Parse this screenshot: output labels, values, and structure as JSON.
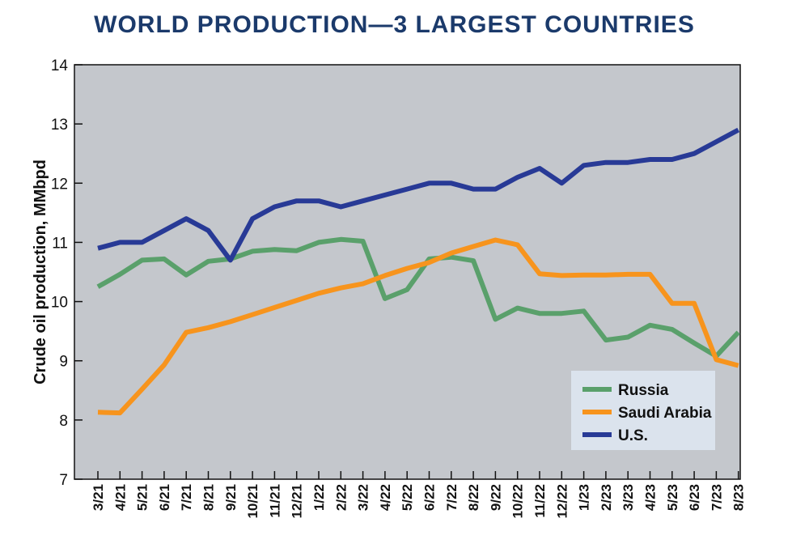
{
  "chart_data": {
    "type": "line",
    "title": "WORLD PRODUCTION—3 LARGEST COUNTRIES",
    "xlabel": "",
    "ylabel": "Crude oil production, MMbpd",
    "ylim": [
      7,
      14
    ],
    "yticks": [
      "7",
      "8",
      "9",
      "10",
      "11",
      "12",
      "13",
      "14"
    ],
    "categories": [
      "3/21",
      "4/21",
      "5/21",
      "6/21",
      "7/21",
      "8/21",
      "9/21",
      "10/21",
      "11/21",
      "12/21",
      "1/22",
      "2/22",
      "3/22",
      "4/22",
      "5/22",
      "6/22",
      "7/22",
      "8/22",
      "9/22",
      "10/22",
      "11/22",
      "12/22",
      "1/23",
      "2/23",
      "3/23",
      "4/23",
      "5/23",
      "6/23",
      "7/23",
      "8/23"
    ],
    "legend_position": "bottom-right",
    "series": [
      {
        "name": "Russia",
        "color": "#5aa06b",
        "values": [
          10.25,
          10.46,
          10.7,
          10.72,
          10.45,
          10.68,
          10.72,
          10.85,
          10.88,
          10.86,
          11.0,
          11.05,
          11.02,
          10.05,
          10.2,
          10.72,
          10.75,
          10.69,
          9.7,
          9.89,
          9.8,
          9.8,
          9.84,
          9.35,
          9.4,
          9.6,
          9.53,
          9.3,
          9.08,
          9.48
        ]
      },
      {
        "name": "Saudi Arabia",
        "color": "#f7941d",
        "values": [
          8.13,
          8.12,
          8.52,
          8.93,
          9.48,
          9.56,
          9.66,
          9.78,
          9.9,
          10.02,
          10.14,
          10.23,
          10.3,
          10.44,
          10.56,
          10.66,
          10.82,
          10.93,
          11.04,
          10.96,
          10.47,
          10.44,
          10.45,
          10.45,
          10.46,
          10.46,
          9.97,
          9.97,
          9.02,
          8.92
        ]
      },
      {
        "name": "U.S.",
        "color": "#283a96",
        "values": [
          10.9,
          11.0,
          11.0,
          11.2,
          11.4,
          11.2,
          10.7,
          11.4,
          11.6,
          11.7,
          11.7,
          11.6,
          11.7,
          11.8,
          11.9,
          12.0,
          12.0,
          11.9,
          11.9,
          12.1,
          12.25,
          12.0,
          12.3,
          12.35,
          12.35,
          12.4,
          12.4,
          12.5,
          12.7,
          12.9
        ]
      }
    ]
  }
}
